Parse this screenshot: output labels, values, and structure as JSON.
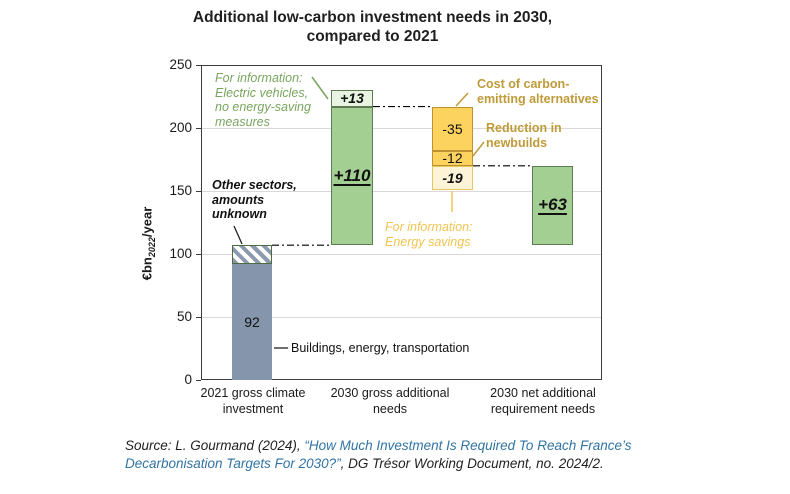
{
  "title": "Additional low-carbon investment needs in 2030,\ncompared to 2021",
  "chart_data": {
    "type": "bar",
    "subtype": "waterfall",
    "title": "Additional low-carbon investment needs in 2030, compared to 2021",
    "ylabel": "€bn2022/year",
    "ylabel_parts": {
      "prefix": "€bn",
      "sub": "2022",
      "suffix": "/year"
    },
    "ylim": [
      0,
      250
    ],
    "yticks": [
      0,
      50,
      100,
      150,
      200,
      250
    ],
    "grid": "horizontal",
    "categories": [
      "2021 gross climate investment",
      "2030 gross additional needs",
      "2030 net additional requirement needs"
    ],
    "bars": [
      {
        "id": "invest-2021-known",
        "col": 0,
        "from": 0,
        "to": 92,
        "value": 92,
        "label": "92",
        "style": "slate",
        "note": "Buildings, energy, transportation"
      },
      {
        "id": "invest-2021-unknown",
        "col": 0,
        "from": 92,
        "to": 107,
        "value": 15,
        "label": "",
        "style": "hatch",
        "note": "Other sectors, amounts unknown"
      },
      {
        "id": "gross-2030",
        "col": 1,
        "from": 107,
        "to": 217,
        "value": 110,
        "label": "+110",
        "style": "green"
      },
      {
        "id": "gross-2030-ev",
        "col": 1,
        "from": 217,
        "to": 230,
        "value": 13,
        "label": "+13",
        "style": "green-light",
        "note": "For information: Electric vehicles, no energy-saving measures"
      },
      {
        "id": "cost-alternatives",
        "col": 2,
        "from": 182,
        "to": 217,
        "value": -35,
        "label": "-35",
        "style": "gold",
        "note": "Cost of carbon-emitting alternatives"
      },
      {
        "id": "reduction-newbuilds",
        "col": 2,
        "from": 170,
        "to": 182,
        "value": -12,
        "label": "-12",
        "style": "gold",
        "note": "Reduction in newbuilds"
      },
      {
        "id": "energy-savings",
        "col": 2,
        "from": 151,
        "to": 170,
        "value": -19,
        "label": "-19",
        "style": "gold-pale",
        "note": "For information: Energy savings"
      },
      {
        "id": "net-2030",
        "col": 3,
        "from": 107,
        "to": 170,
        "value": 63,
        "label": "+63",
        "style": "green"
      }
    ],
    "connectors": [
      {
        "level": 107,
        "from_col": 0,
        "to_col": 1
      },
      {
        "level": 217,
        "from_col": 1,
        "to_col": 2
      },
      {
        "level": 170,
        "from_col": 2,
        "to_col": 3
      }
    ],
    "annotations": {
      "ev": "For information:\nElectric vehicles,\nno energy-saving\nmeasures",
      "other_sectors": "Other sectors,\namounts\nunknown",
      "buildings": "Buildings, energy, transportation",
      "cost": "Cost of carbon-\nemitting alternatives",
      "newbuilds": "Reduction in\nnewbuilds",
      "energy": "For information:\nEnergy savings"
    },
    "legend": "none"
  },
  "source": {
    "pre": "Source: L. Gourmand (2024), ",
    "link": "“How Much Investment Is Required To Reach France’s Decarbonisation Targets For 2030?”",
    "post": ", DG Trésor Working Document, no. 2024/2."
  },
  "colors": {
    "bar_slate": "#8495ac",
    "bar_green": "#a4cf93",
    "bar_green_light": "#e9f3e1",
    "bar_gold": "#fcd35e",
    "bar_gold_pale": "#fdf4d7",
    "border_green": "#5e7b55",
    "border_gold": "#bf9231",
    "border_hatch": "#4e6b3f",
    "text_green": "#78a55e",
    "text_gold_dark": "#bf9a38",
    "text_gold_light": "#f1c44f",
    "link_blue": "#3174a3",
    "gridline": "#d9d9d9"
  }
}
